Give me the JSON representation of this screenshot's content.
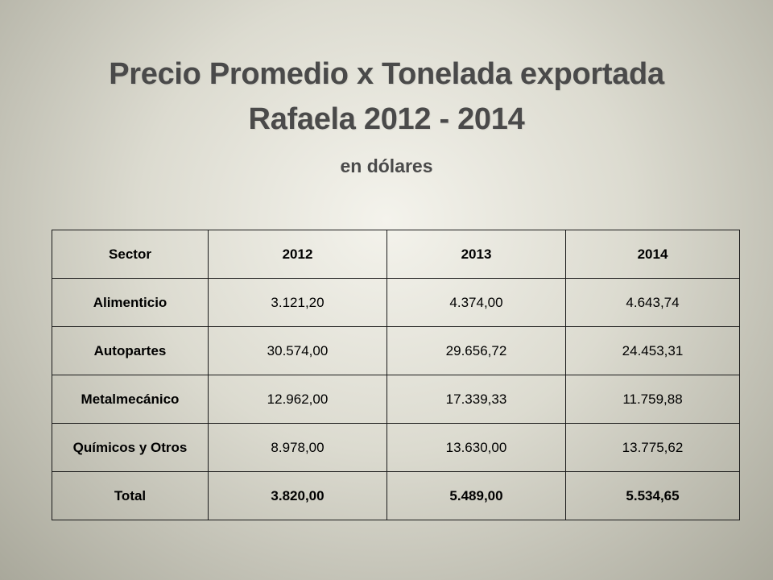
{
  "slide": {
    "title_line1": "Precio Promedio x Tonelada exportada",
    "title_line2": "Rafaela 2012 - 2014",
    "subtitle": "en dólares"
  },
  "table": {
    "headers": [
      "Sector",
      "2012",
      "2013",
      "2014"
    ],
    "rows": [
      {
        "sector": "Alimenticio",
        "values": [
          "3.121,20",
          "4.374,00",
          "4.643,74"
        ]
      },
      {
        "sector": "Autopartes",
        "values": [
          "30.574,00",
          "29.656,72",
          "24.453,31"
        ]
      },
      {
        "sector": "Metalmecánico",
        "values": [
          "12.962,00",
          "17.339,33",
          "11.759,88"
        ]
      },
      {
        "sector": "Químicos y Otros",
        "values": [
          "8.978,00",
          "13.630,00",
          "13.775,62"
        ]
      }
    ],
    "total": {
      "sector": "Total",
      "values": [
        "3.820,00",
        "5.489,00",
        "5.534,65"
      ]
    }
  }
}
